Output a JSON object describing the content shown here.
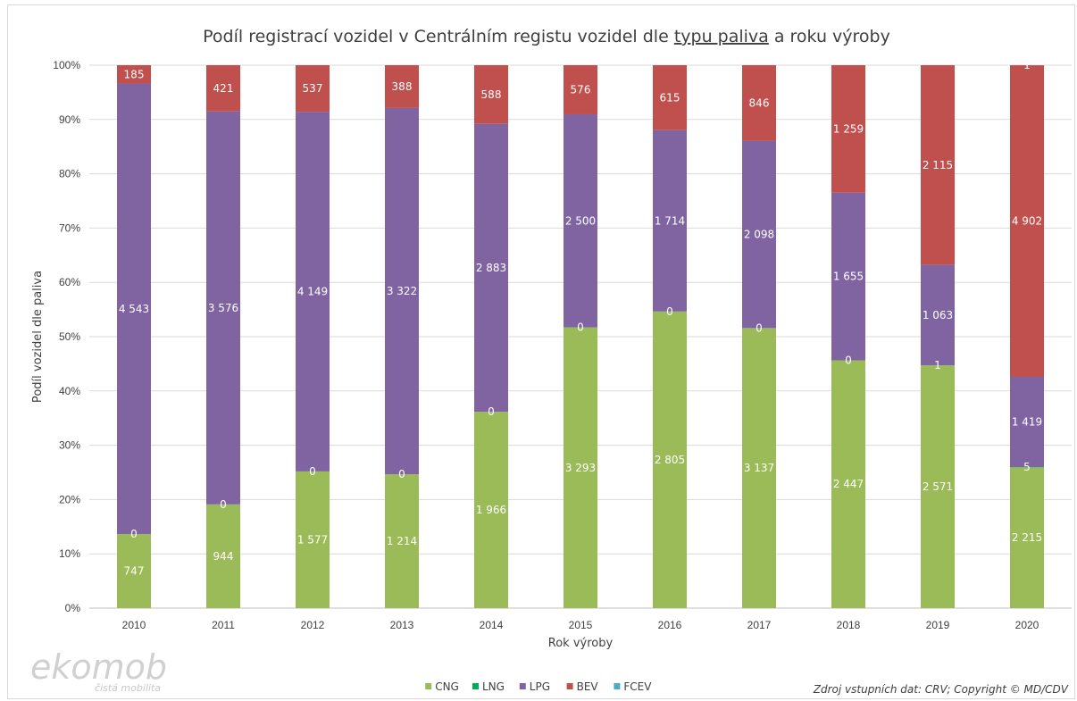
{
  "chart_data": {
    "type": "bar",
    "stacked": true,
    "normalized": true,
    "title": {
      "before": "Podíl registrací vozidel v Centrálním registu vozidel dle ",
      "underlined": "typu paliva",
      "after": " a roku výroby"
    },
    "xlabel": "Rok výroby",
    "ylabel": "Podíl vozidel dle paliva",
    "ylim": [
      0,
      100
    ],
    "y_ticks": [
      "0%",
      "10%",
      "20%",
      "30%",
      "40%",
      "50%",
      "60%",
      "70%",
      "80%",
      "90%",
      "100%"
    ],
    "grid": true,
    "legend_position": "bottom",
    "categories": [
      "2010",
      "2011",
      "2012",
      "2013",
      "2014",
      "2015",
      "2016",
      "2017",
      "2018",
      "2019",
      "2020"
    ],
    "series": [
      {
        "name": "CNG",
        "color": "#9bbb59",
        "values": [
          747,
          944,
          1577,
          1214,
          1966,
          3293,
          2805,
          3137,
          2447,
          2571,
          2215
        ],
        "labels": [
          "747",
          "944",
          "1 577",
          "1 214",
          "1 966",
          "3 293",
          "2 805",
          "3 137",
          "2 447",
          "2 571",
          "2 215"
        ]
      },
      {
        "name": "LNG",
        "color": "#00b050",
        "values": [
          0,
          0,
          0,
          0,
          0,
          0,
          0,
          0,
          0,
          1,
          5
        ],
        "labels": [
          "0",
          "0",
          "0",
          "0",
          "0",
          "0",
          "0",
          "0",
          "0",
          "1",
          "5"
        ]
      },
      {
        "name": "LPG",
        "color": "#8064a2",
        "values": [
          4543,
          3576,
          4149,
          3322,
          2883,
          2500,
          1714,
          2098,
          1655,
          1063,
          1419
        ],
        "labels": [
          "4 543",
          "3 576",
          "4 149",
          "3 322",
          "2 883",
          "2 500",
          "1 714",
          "2 098",
          "1 655",
          "1 063",
          "1 419"
        ]
      },
      {
        "name": "BEV",
        "color": "#c0504d",
        "values": [
          185,
          421,
          537,
          388,
          588,
          576,
          615,
          846,
          1259,
          2115,
          4902
        ],
        "labels": [
          "185",
          "421",
          "537",
          "388",
          "588",
          "576",
          "615",
          "846",
          "1 259",
          "2 115",
          "4 902"
        ]
      },
      {
        "name": "FCEV",
        "color": "#4bacc6",
        "values": [
          0,
          0,
          0,
          0,
          0,
          0,
          0,
          0,
          0,
          0,
          1
        ],
        "labels": [
          "",
          "",
          "",
          "",
          "",
          "",
          "",
          "",
          "",
          "",
          "1"
        ]
      }
    ]
  },
  "logo": {
    "main": "ekomob",
    "tagline": "čistá mobilita"
  },
  "source": "Zdroj vstupních dat: CRV; Copyright © MD/CDV"
}
